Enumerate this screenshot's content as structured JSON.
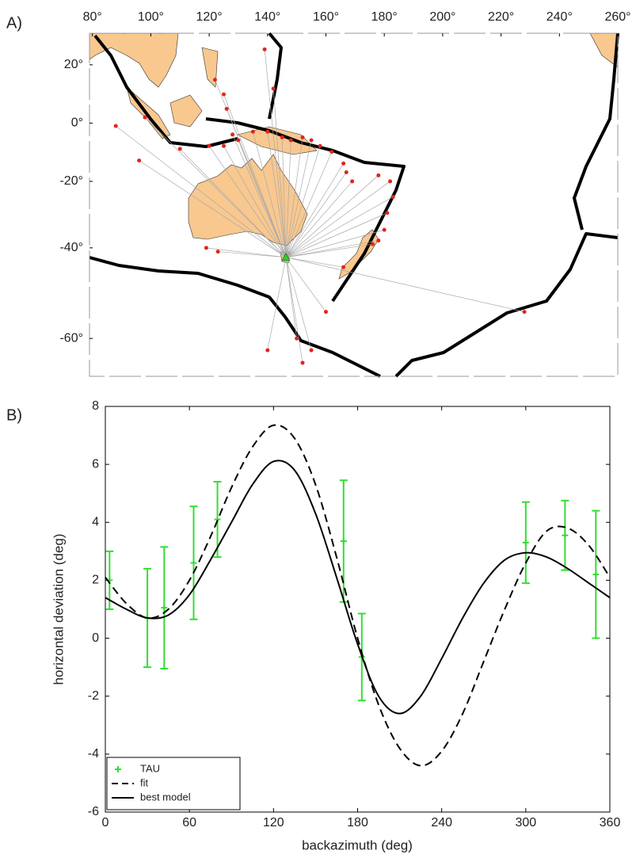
{
  "chart_data": [
    {
      "type": "map",
      "panel_label": "A)",
      "projection": "mercator",
      "xlim": [
        79,
        260
      ],
      "ylim": [
        -66,
        30
      ],
      "xticks": [
        {
          "value": 80,
          "label": "80°"
        },
        {
          "value": 100,
          "label": "100°"
        },
        {
          "value": 120,
          "label": "120°"
        },
        {
          "value": 140,
          "label": "140°"
        },
        {
          "value": 160,
          "label": "160°"
        },
        {
          "value": 180,
          "label": "180°"
        },
        {
          "value": 200,
          "label": "200°"
        },
        {
          "value": 220,
          "label": "220°"
        },
        {
          "value": 240,
          "label": "240°"
        },
        {
          "value": 260,
          "label": "260°"
        }
      ],
      "yticks": [
        {
          "value": 20,
          "label": "20°"
        },
        {
          "value": 0,
          "label": "0°"
        },
        {
          "value": -20,
          "label": "-20°"
        },
        {
          "value": -40,
          "label": "-40°"
        },
        {
          "value": -60,
          "label": "-60°"
        }
      ],
      "station": {
        "x": 146.3,
        "y": -42.5,
        "color": "#33cc33"
      },
      "events": {
        "color": "#e0261b",
        "x": [
          88,
          96,
          119,
          123,
          120,
          125,
          128,
          130,
          135,
          140,
          145,
          148,
          152,
          155,
          158,
          162,
          166,
          167,
          169,
          178,
          182,
          183,
          181,
          180,
          178,
          176,
          166,
          160,
          150,
          155,
          152,
          140,
          228,
          125,
          126,
          122,
          139,
          142,
          98,
          110
        ],
        "y": [
          -1,
          -13,
          -40,
          -41,
          -8,
          -8,
          -4,
          -6,
          -3,
          -3,
          -5,
          -6,
          -5,
          -6,
          -8,
          -10,
          -14,
          -17,
          -20,
          -18,
          -20,
          -25,
          -30,
          -35,
          -38,
          -39,
          -45,
          -55,
          -60,
          -62,
          -64,
          -62,
          -55,
          10,
          5,
          15,
          25,
          12,
          2,
          -9
        ]
      }
    },
    {
      "type": "line",
      "panel_label": "B)",
      "x_label": "backazimuth (deg)",
      "y_label": "horizontal deviation (deg)",
      "xlim": [
        0,
        360
      ],
      "ylim": [
        -6,
        8
      ],
      "xticks": [
        0,
        60,
        120,
        180,
        240,
        300,
        360
      ],
      "yticks": [
        -6,
        -4,
        -2,
        0,
        2,
        4,
        6,
        8
      ],
      "legend": "lower left",
      "series": [
        {
          "name": "TAU",
          "type": "errorbar",
          "color": "#33dd33",
          "x": [
            3,
            30,
            42,
            63,
            80,
            170,
            183,
            300,
            328,
            350
          ],
          "values": [
            2.0,
            0.7,
            1.05,
            2.6,
            4.1,
            3.35,
            -0.65,
            3.3,
            3.55,
            2.2
          ],
          "errors": [
            1.0,
            1.7,
            2.1,
            1.95,
            1.3,
            2.1,
            1.5,
            1.4,
            1.2,
            2.2
          ]
        },
        {
          "name": "fit",
          "type": "line",
          "style": "dashed",
          "color": "#000000",
          "x": [
            0,
            15,
            30,
            45,
            60,
            75,
            90,
            105,
            120,
            135,
            150,
            165,
            180,
            195,
            210,
            225,
            240,
            255,
            270,
            285,
            300,
            315,
            330,
            345,
            360
          ],
          "values": [
            2.1,
            1.2,
            0.7,
            1.0,
            2.0,
            3.5,
            5.2,
            6.6,
            7.35,
            6.9,
            5.3,
            2.8,
            0.0,
            -2.3,
            -3.8,
            -4.4,
            -3.9,
            -2.6,
            -0.8,
            1.0,
            2.6,
            3.7,
            3.8,
            3.2,
            2.1
          ]
        },
        {
          "name": "best model",
          "type": "line",
          "style": "solid",
          "color": "#000000",
          "x": [
            0,
            15,
            30,
            45,
            60,
            75,
            90,
            105,
            120,
            135,
            150,
            165,
            180,
            195,
            210,
            225,
            240,
            255,
            270,
            285,
            300,
            315,
            330,
            345,
            360
          ],
          "values": [
            1.4,
            1.0,
            0.7,
            0.8,
            1.5,
            2.7,
            4.0,
            5.3,
            6.1,
            5.8,
            4.3,
            2.1,
            -0.2,
            -2.0,
            -2.6,
            -2.0,
            -0.7,
            0.7,
            1.9,
            2.7,
            2.95,
            2.8,
            2.4,
            1.9,
            1.4
          ]
        }
      ]
    }
  ]
}
